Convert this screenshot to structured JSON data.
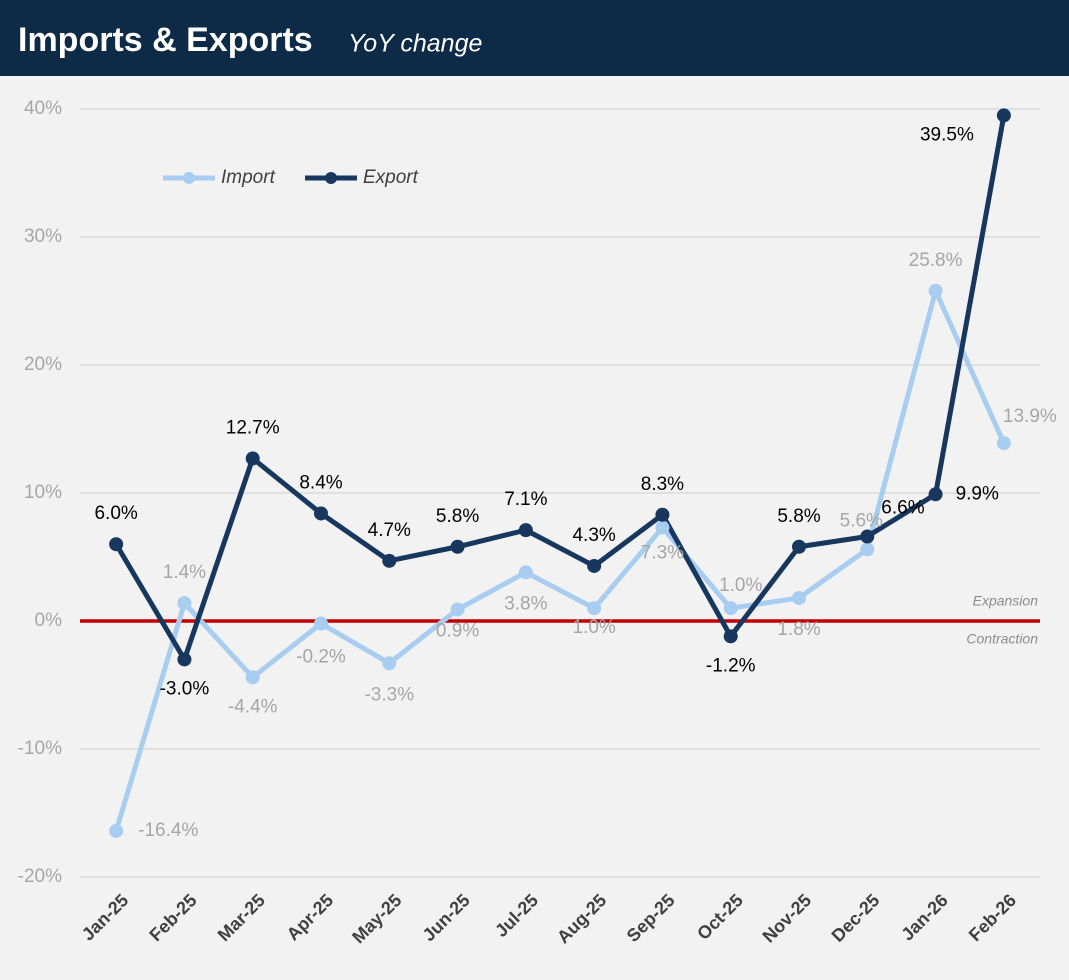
{
  "chart_data": {
    "type": "line",
    "title": "Imports & Exports",
    "subtitle": "YoY change",
    "categories": [
      "Jan-25",
      "Feb-25",
      "Mar-25",
      "Apr-25",
      "May-25",
      "Jun-25",
      "Jul-25",
      "Aug-25",
      "Sep-25",
      "Oct-25",
      "Nov-25",
      "Dec-25",
      "Jan-26",
      "Feb-26"
    ],
    "series": [
      {
        "name": "Import",
        "color": "#a9cdf0",
        "values": [
          -16.4,
          1.4,
          -4.4,
          -0.2,
          -3.3,
          0.9,
          3.8,
          1.0,
          7.3,
          1.0,
          1.8,
          5.6,
          25.8,
          13.9
        ],
        "value_labels": [
          "-16.4%",
          "1.4%",
          "-4.4%",
          "-0.2%",
          "-3.3%",
          "0.9%",
          "3.8%",
          "1.0%",
          "7.3%",
          "1.0%",
          "1.8%",
          "5.6%",
          "25.8%",
          "13.9%"
        ]
      },
      {
        "name": "Export",
        "color": "#17375e",
        "values": [
          6.0,
          -3.0,
          12.7,
          8.4,
          4.7,
          5.8,
          7.1,
          4.3,
          8.3,
          -1.2,
          5.8,
          6.6,
          9.9,
          39.5
        ],
        "value_labels": [
          "6.0%",
          "-3.0%",
          "12.7%",
          "8.4%",
          "4.7%",
          "5.8%",
          "7.1%",
          "4.3%",
          "8.3%",
          "-1.2%",
          "5.8%",
          "6.6%",
          "9.9%",
          "39.5%"
        ]
      }
    ],
    "ylim": [
      -20,
      40
    ],
    "yticks": [
      {
        "value": -20,
        "label": "-20%"
      },
      {
        "value": -10,
        "label": "-10%"
      },
      {
        "value": 0,
        "label": "0%"
      },
      {
        "value": 10,
        "label": "10%"
      },
      {
        "value": 20,
        "label": "20%"
      },
      {
        "value": 30,
        "label": "30%"
      },
      {
        "value": 40,
        "label": "40%"
      }
    ],
    "grid": true,
    "reference_line": {
      "value": 0,
      "color": "#c00000"
    },
    "annotations": [
      "Expansion",
      "Contraction"
    ],
    "legend": "top-left"
  }
}
